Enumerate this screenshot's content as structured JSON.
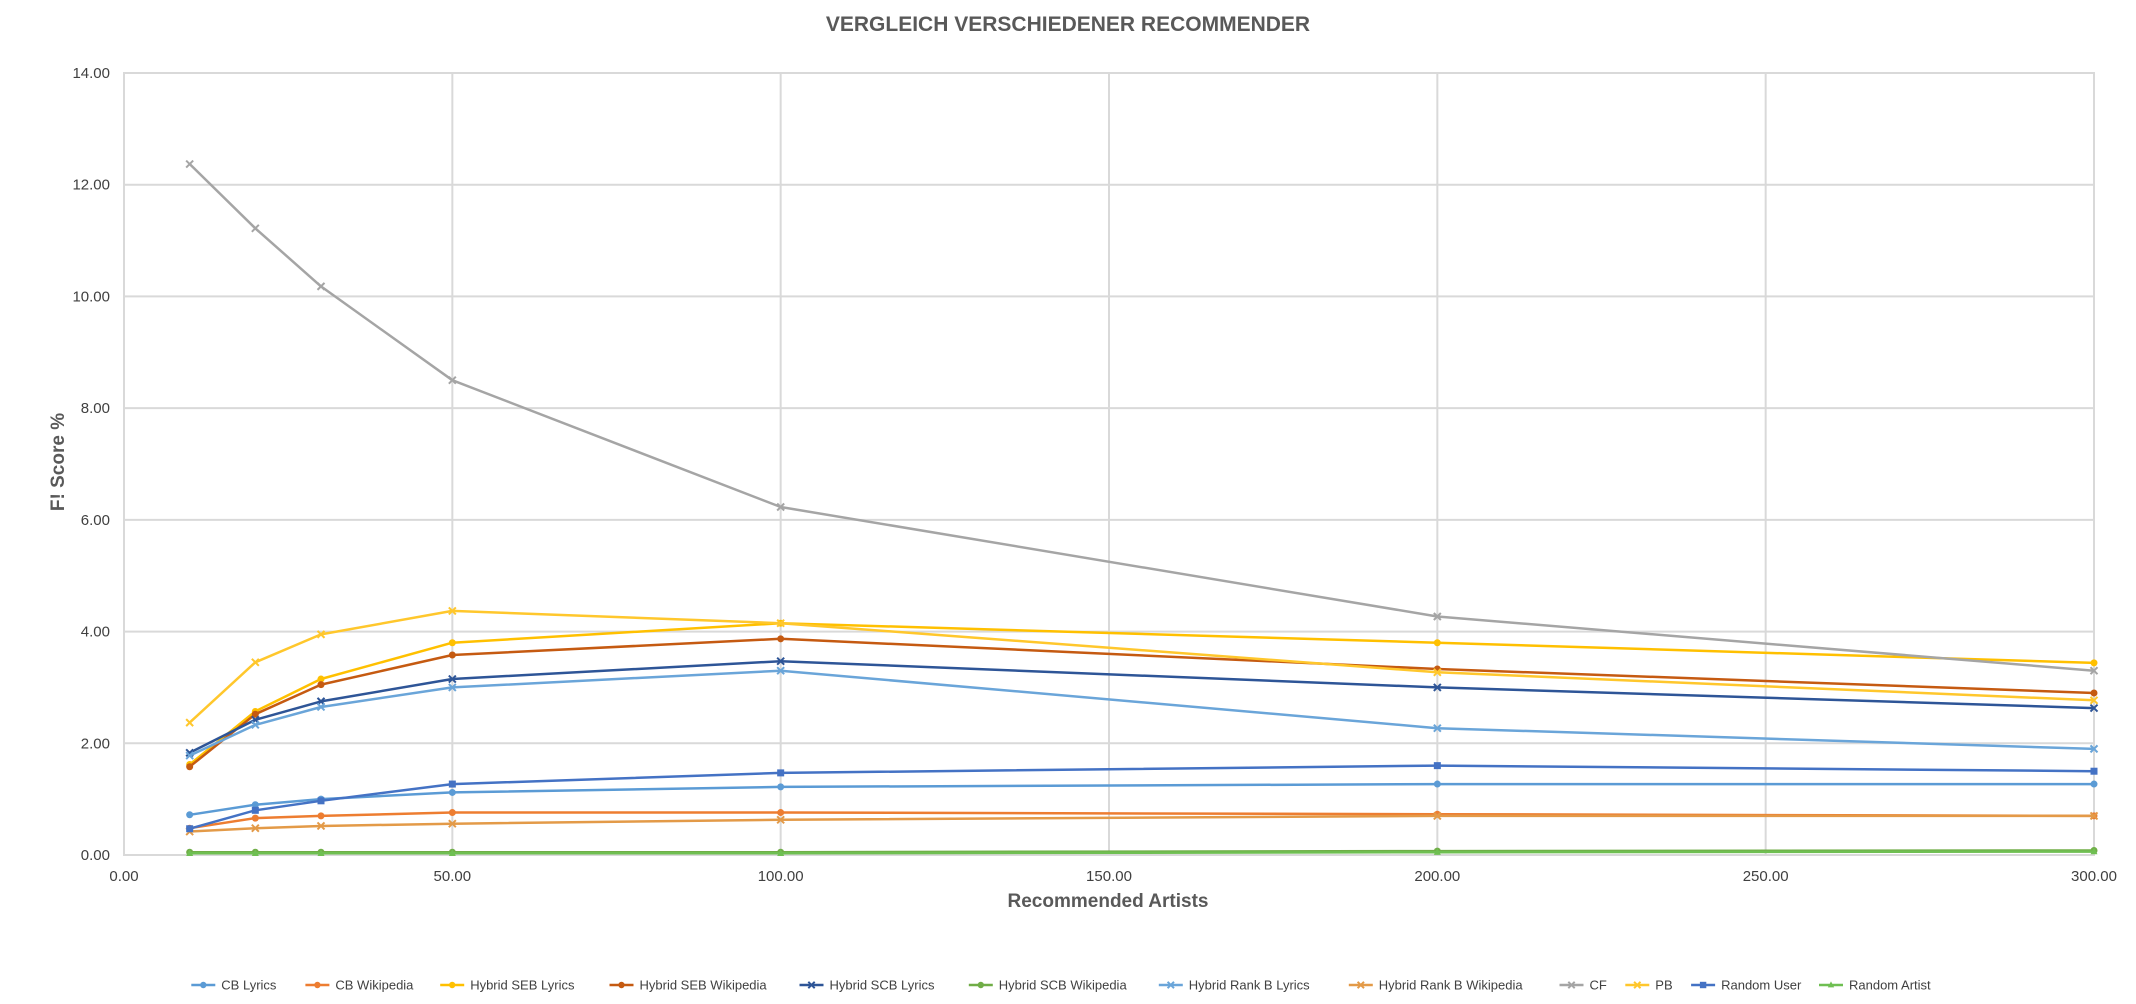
{
  "chart_data": {
    "type": "scatter",
    "title": "VERGLEICH VERSCHIEDENER RECOMMENDER",
    "xlabel": "Recommended Artists",
    "ylabel": "F! Score %",
    "xlim": [
      0,
      300
    ],
    "ylim": [
      0,
      14
    ],
    "xticks": [
      0,
      50,
      100,
      150,
      200,
      250,
      300
    ],
    "yticks": [
      0,
      2,
      4,
      6,
      8,
      10,
      12,
      14
    ],
    "xtick_labels": [
      "0.00",
      "50.00",
      "100.00",
      "150.00",
      "200.00",
      "250.00",
      "300.00"
    ],
    "ytick_labels": [
      "0.00",
      "2.00",
      "4.00",
      "6.00",
      "8.00",
      "10.00",
      "12.00",
      "14.00"
    ],
    "grid": true,
    "legend_position": "bottom",
    "x": [
      10,
      20,
      30,
      50,
      100,
      200,
      300
    ],
    "series": [
      {
        "name": "CB Lyrics",
        "color": "#5b9bd5",
        "marker": "circle",
        "values": [
          0.72,
          0.9,
          1.0,
          1.12,
          1.22,
          1.27,
          1.27
        ]
      },
      {
        "name": "CB Wikipedia",
        "color": "#ed7d31",
        "marker": "circle",
        "values": [
          0.48,
          0.66,
          0.7,
          0.76,
          0.76,
          0.73,
          0.7
        ]
      },
      {
        "name": "Hybrid SEB Lyrics",
        "color": "#ffc000",
        "marker": "circle",
        "values": [
          1.62,
          2.57,
          3.15,
          3.8,
          4.15,
          3.8,
          3.44
        ]
      },
      {
        "name": "Hybrid SEB Wikipedia",
        "color": "#c55a11",
        "marker": "circle",
        "values": [
          1.58,
          2.52,
          3.05,
          3.58,
          3.87,
          3.33,
          2.9
        ]
      },
      {
        "name": "Hybrid SCB Lyrics",
        "color": "#2e5597",
        "marker": "cross",
        "values": [
          1.83,
          2.42,
          2.75,
          3.15,
          3.47,
          3.0,
          2.63
        ]
      },
      {
        "name": "Hybrid SCB Wikipedia",
        "color": "#70ad47",
        "marker": "circle",
        "values": [
          0.05,
          0.05,
          0.05,
          0.05,
          0.05,
          0.07,
          0.08
        ]
      },
      {
        "name": "Hybrid Rank B Lyrics",
        "color": "#6aa5d9",
        "marker": "cross",
        "values": [
          1.78,
          2.33,
          2.65,
          3.0,
          3.3,
          2.27,
          1.9
        ]
      },
      {
        "name": "Hybrid Rank B Wikipedia",
        "color": "#e39a48",
        "marker": "cross",
        "values": [
          0.42,
          0.48,
          0.52,
          0.56,
          0.63,
          0.7,
          0.7
        ]
      },
      {
        "name": "CF",
        "color": "#a5a5a5",
        "marker": "cross",
        "values": [
          12.37,
          11.22,
          10.18,
          8.5,
          6.23,
          4.27,
          3.3
        ]
      },
      {
        "name": "PB",
        "color": "#ffc72c",
        "marker": "cross",
        "values": [
          2.37,
          3.45,
          3.95,
          4.37,
          4.15,
          3.27,
          2.77
        ]
      },
      {
        "name": "Random User",
        "color": "#4472c4",
        "marker": "square",
        "values": [
          0.47,
          0.8,
          0.97,
          1.27,
          1.47,
          1.6,
          1.5
        ]
      },
      {
        "name": "Random Artist",
        "color": "#6fbf52",
        "marker": "triangle",
        "values": [
          0.03,
          0.03,
          0.03,
          0.03,
          0.03,
          0.05,
          0.06
        ]
      }
    ]
  }
}
